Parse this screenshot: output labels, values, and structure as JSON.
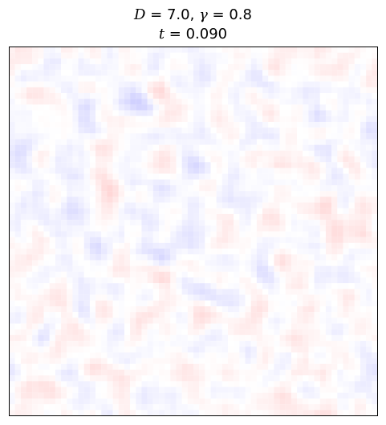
{
  "chart_data": {
    "type": "heatmap",
    "title_lines": [
      "D = 7.0, γ = 0.8",
      "t = 0.090"
    ],
    "grid": {
      "cols": 64,
      "rows": 64
    },
    "colormap": "bwr",
    "value_range": [
      -1,
      1
    ],
    "amplitude": 0.18,
    "noise_seed": 7,
    "axes_visible": false,
    "legend": "none"
  }
}
